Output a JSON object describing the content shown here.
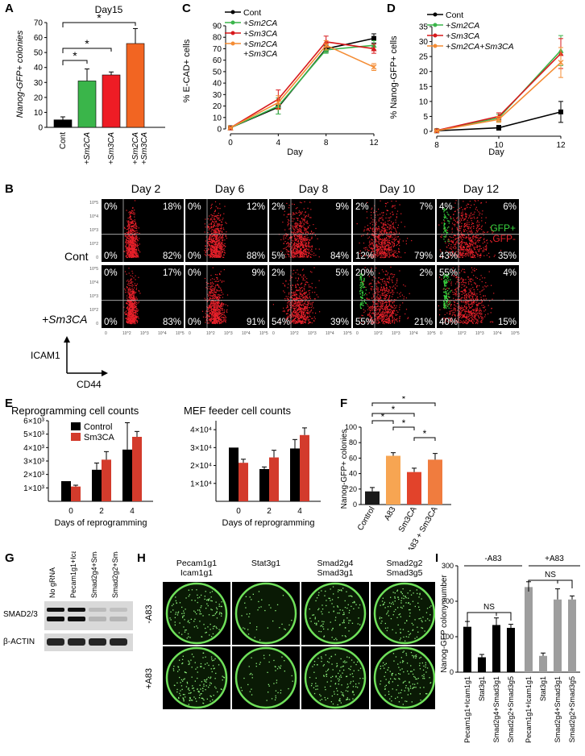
{
  "panel_labels": [
    "A",
    "B",
    "C",
    "D",
    "E",
    "F",
    "G",
    "H",
    "I"
  ],
  "panel_a": {
    "title": "Day15",
    "ylabel": "Nanog-GFP+ colonies",
    "yticks": [
      0,
      10,
      20,
      30,
      40,
      50,
      60,
      70
    ],
    "categories": [
      "Cont",
      "+Sm2CA",
      "+Sm3CA",
      "+Sm2CA +Sm3CA"
    ],
    "values": [
      5,
      31,
      35,
      56
    ],
    "errors": [
      2,
      8,
      2,
      10
    ],
    "colors": [
      "#000000",
      "#3ab54a",
      "#ee1c25",
      "#f26522"
    ],
    "sig": [
      "*",
      "*",
      "*"
    ]
  },
  "panel_c": {
    "ylabel": "% E-CAD+ cells",
    "xlabel": "Day",
    "xticks": [
      0,
      4,
      8,
      12
    ],
    "yticks": [
      0,
      10,
      20,
      30,
      40,
      50,
      60,
      70,
      80,
      90
    ],
    "series": [
      {
        "name": "Cont",
        "color": "#000000",
        "x": [
          0,
          4,
          8,
          12
        ],
        "y": [
          1,
          19,
          70,
          79
        ],
        "err": [
          0.5,
          6,
          3,
          4
        ]
      },
      {
        "name": "+Sm2CA",
        "color": "#3ab54a",
        "x": [
          0,
          4,
          8,
          12
        ],
        "y": [
          1,
          20,
          69,
          73
        ],
        "err": [
          0.5,
          7,
          3,
          4
        ]
      },
      {
        "name": "+Sm3CA",
        "color": "#d7191c",
        "x": [
          0,
          4,
          8,
          12
        ],
        "y": [
          1,
          26,
          76,
          70
        ],
        "err": [
          0.5,
          8,
          5,
          4
        ]
      },
      {
        "name": "+Sm2CA +Sm3CA",
        "color": "#f48c34",
        "x": [
          0,
          4,
          8,
          12
        ],
        "y": [
          1,
          23,
          73,
          54
        ],
        "err": [
          0.5,
          6,
          4,
          3
        ]
      }
    ]
  },
  "panel_d": {
    "ylabel": "% Nanog-GFP+ cells",
    "xlabel": "Day",
    "xticks": [
      8,
      10,
      12
    ],
    "yticks": [
      0,
      5,
      10,
      15,
      20,
      25,
      30,
      35
    ],
    "series": [
      {
        "name": "Cont",
        "color": "#000000",
        "x": [
          8,
          10,
          12
        ],
        "y": [
          0.2,
          1.2,
          6.5
        ],
        "err": [
          0.1,
          0.8,
          3.5
        ]
      },
      {
        "name": "+Sm2CA",
        "color": "#3ab54a",
        "x": [
          8,
          10,
          12
        ],
        "y": [
          0.3,
          4.5,
          27
        ],
        "err": [
          0.1,
          1.2,
          5
        ]
      },
      {
        "name": "+Sm3CA",
        "color": "#d7191c",
        "x": [
          8,
          10,
          12
        ],
        "y": [
          0.3,
          5,
          26
        ],
        "err": [
          0.1,
          1.2,
          5
        ]
      },
      {
        "name": "+Sm2CA+Sm3CA",
        "color": "#f48c34",
        "x": [
          8,
          10,
          12
        ],
        "y": [
          0.2,
          4,
          23
        ],
        "err": [
          0.1,
          1,
          5
        ]
      }
    ]
  },
  "panel_b": {
    "days": [
      "Day 2",
      "Day 6",
      "Day 8",
      "Day 10",
      "Day 12"
    ],
    "row_labels": [
      "Cont",
      "+Sm3CA"
    ],
    "legend_gfp_pos": "GFP+",
    "legend_gfp_neg": "GFP-",
    "yaxis": "ICAM1",
    "xaxis": "CD44",
    "quadrants": [
      [
        [
          "0%",
          "18%",
          "0%",
          "82%"
        ],
        [
          "0%",
          "12%",
          "0%",
          "88%"
        ],
        [
          "2%",
          "9%",
          "5%",
          "84%"
        ],
        [
          "2%",
          "7%",
          "12%",
          "79%"
        ],
        [
          "4%",
          "6%",
          "43%",
          "35%"
        ]
      ],
      [
        [
          "0%",
          "17%",
          "0%",
          "83%"
        ],
        [
          "0%",
          "9%",
          "0%",
          "91%"
        ],
        [
          "2%",
          "5%",
          "54%",
          "39%"
        ],
        [
          "20%",
          "2%",
          "55%",
          "21%"
        ],
        [
          "55%",
          "4%",
          "40%",
          "15%"
        ]
      ]
    ],
    "green_level": [
      [
        0,
        0,
        0,
        0,
        0.5
      ],
      [
        0,
        0,
        0,
        0.7,
        1
      ]
    ],
    "tick_labels_y": [
      "10^5",
      "10^4",
      "10^3",
      "10^2",
      "0"
    ],
    "tick_labels_x": [
      "0",
      "10^2",
      "10^3",
      "10^4",
      "10^5"
    ]
  },
  "panel_e": {
    "legend": [
      "Control",
      "Sm3CA"
    ],
    "colors": [
      "#000000",
      "#d33b2c"
    ],
    "xlabel": "Days of reprogramming",
    "charts": [
      {
        "title": "Reprogramming cell counts",
        "categories": [
          "0",
          "2",
          "4"
        ],
        "yticks": [
          "1×10³",
          "2×10³",
          "3×10³",
          "4×10³",
          "5×10³",
          "6×10³"
        ],
        "ymax": 6000,
        "series": [
          {
            "name": "Control",
            "values": [
              1500,
              2350,
              3850
            ],
            "errors": [
              0,
              500,
              2000
            ]
          },
          {
            "name": "Sm3CA",
            "values": [
              1100,
              3100,
              4800
            ],
            "errors": [
              100,
              600,
              400
            ]
          }
        ]
      },
      {
        "title": "MEF feeder cell counts",
        "categories": [
          "0",
          "2",
          "4"
        ],
        "yticks": [
          "1×10⁴",
          "2×10⁴",
          "3×10⁴",
          "4×10⁴"
        ],
        "ymax": 45000,
        "series": [
          {
            "name": "Control",
            "values": [
              30000,
              18000,
              29500
            ],
            "errors": [
              0,
              1200,
              5000
            ]
          },
          {
            "name": "Sm3CA",
            "values": [
              21500,
              24500,
              37000
            ],
            "errors": [
              2000,
              4000,
              4000
            ]
          }
        ]
      }
    ]
  },
  "panel_f": {
    "ylabel": "Nanog-GFP+ colonies",
    "yticks": [
      0,
      20,
      40,
      60,
      80,
      100
    ],
    "categories": [
      "Control",
      "A83",
      "Sm3CA",
      "A83 + Sm3CA"
    ],
    "values": [
      17,
      63,
      42,
      58
    ],
    "errors": [
      5,
      4,
      5,
      8
    ],
    "colors": [
      "#1a1a1a",
      "#f7a552",
      "#e2432b",
      "#f07c3e"
    ],
    "sig": [
      "*",
      "*",
      "*",
      "*",
      "*"
    ]
  },
  "panel_g": {
    "lanes": [
      "No gRNA",
      "Pecam1g1+Icam1g1",
      "Smad2g4+Smad3g1",
      "Smad2g2+Smad3g5"
    ],
    "blots": [
      "SMAD2/3",
      "β-ACTIN"
    ]
  },
  "panel_h": {
    "columns": [
      "Pecam1g1\nIcam1g1",
      "Stat3g1",
      "Smad2g4\nSmad3g1",
      "Smad2g2\nSmad3g5"
    ],
    "rows": [
      "-A83",
      "+A83"
    ],
    "density": [
      [
        0.5,
        0.15,
        0.45,
        0.5
      ],
      [
        0.6,
        0.2,
        0.55,
        0.55
      ]
    ]
  },
  "panel_i": {
    "ylabel": "Nanog-GFP colony number",
    "yticks": [
      0,
      100,
      200,
      300
    ],
    "group_labels": [
      "-A83",
      "+A83"
    ],
    "categories": [
      "Pecam1g1+Icam1g1",
      "Stat3g1",
      "Smad2g4+Smad3g1",
      "Smad2g2+Smad3g5"
    ],
    "values_minus": [
      128,
      42,
      133,
      125
    ],
    "errors_minus": [
      15,
      8,
      20,
      10
    ],
    "values_plus": [
      240,
      46,
      205,
      205
    ],
    "errors_plus": [
      15,
      8,
      30,
      10
    ],
    "colors": [
      "#000000",
      "#9e9e9e"
    ],
    "ns": "NS"
  }
}
